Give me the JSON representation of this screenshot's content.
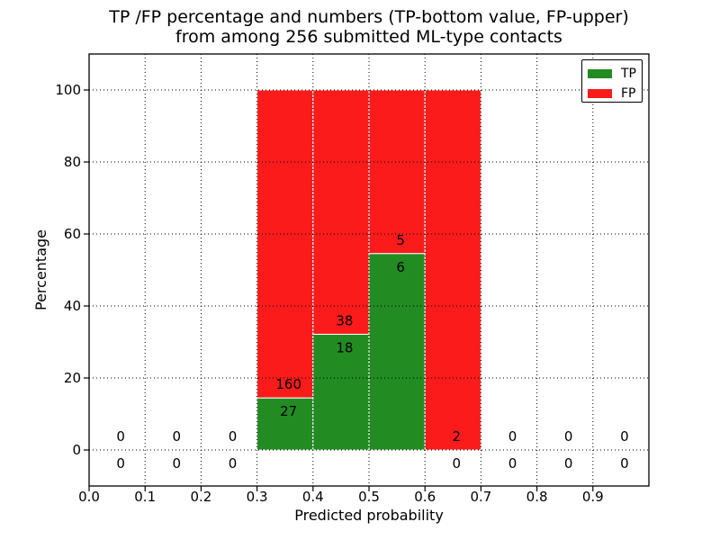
{
  "chart_data": {
    "type": "bar",
    "stacked": true,
    "title_line1": "TP /FP percentage and numbers (TP-bottom value, FP-upper)",
    "title_line2": "from among 256 submitted ML-type contacts",
    "xlabel": "Predicted probability",
    "ylabel": "Percentage",
    "xlim": [
      0.0,
      1.0
    ],
    "ylim": [
      -10,
      110
    ],
    "bar_width": 0.1,
    "grid": "dotted",
    "legend_position": "upper right",
    "total_contacts": 256,
    "series": [
      {
        "name": "TP",
        "color": "#228b22",
        "position": "bottom"
      },
      {
        "name": "FP",
        "color": "#fb1b1b",
        "position": "top"
      }
    ],
    "xticks": [
      {
        "value": 0.0,
        "label": "0.0"
      },
      {
        "value": 0.1,
        "label": "0.1"
      },
      {
        "value": 0.2,
        "label": "0.2"
      },
      {
        "value": 0.3,
        "label": "0.3"
      },
      {
        "value": 0.4,
        "label": "0.4"
      },
      {
        "value": 0.5,
        "label": "0.5"
      },
      {
        "value": 0.6,
        "label": "0.6"
      },
      {
        "value": 0.7,
        "label": "0.7"
      },
      {
        "value": 0.8,
        "label": "0.8"
      },
      {
        "value": 0.9,
        "label": "0.9"
      }
    ],
    "yticks": [
      {
        "value": 0,
        "label": "0"
      },
      {
        "value": 20,
        "label": "20"
      },
      {
        "value": 40,
        "label": "40"
      },
      {
        "value": 60,
        "label": "60"
      },
      {
        "value": 80,
        "label": "80"
      },
      {
        "value": 100,
        "label": "100"
      }
    ],
    "bins": [
      {
        "x0": 0.0,
        "x1": 0.1,
        "tp": 0,
        "fp": 0,
        "tp_pct": 0,
        "fp_pct": 0
      },
      {
        "x0": 0.1,
        "x1": 0.2,
        "tp": 0,
        "fp": 0,
        "tp_pct": 0,
        "fp_pct": 0
      },
      {
        "x0": 0.2,
        "x1": 0.3,
        "tp": 0,
        "fp": 0,
        "tp_pct": 0,
        "fp_pct": 0
      },
      {
        "x0": 0.3,
        "x1": 0.4,
        "tp": 27,
        "fp": 160,
        "tp_pct": 14.44,
        "fp_pct": 85.56
      },
      {
        "x0": 0.4,
        "x1": 0.5,
        "tp": 18,
        "fp": 38,
        "tp_pct": 32.14,
        "fp_pct": 67.86
      },
      {
        "x0": 0.5,
        "x1": 0.6,
        "tp": 6,
        "fp": 5,
        "tp_pct": 54.55,
        "fp_pct": 45.45
      },
      {
        "x0": 0.6,
        "x1": 0.7,
        "tp": 0,
        "fp": 2,
        "tp_pct": 0,
        "fp_pct": 100
      },
      {
        "x0": 0.7,
        "x1": 0.8,
        "tp": 0,
        "fp": 0,
        "tp_pct": 0,
        "fp_pct": 0
      },
      {
        "x0": 0.8,
        "x1": 0.9,
        "tp": 0,
        "fp": 0,
        "tp_pct": 0,
        "fp_pct": 0
      },
      {
        "x0": 0.9,
        "x1": 1.0,
        "tp": 0,
        "fp": 0,
        "tp_pct": 0,
        "fp_pct": 0
      }
    ]
  }
}
